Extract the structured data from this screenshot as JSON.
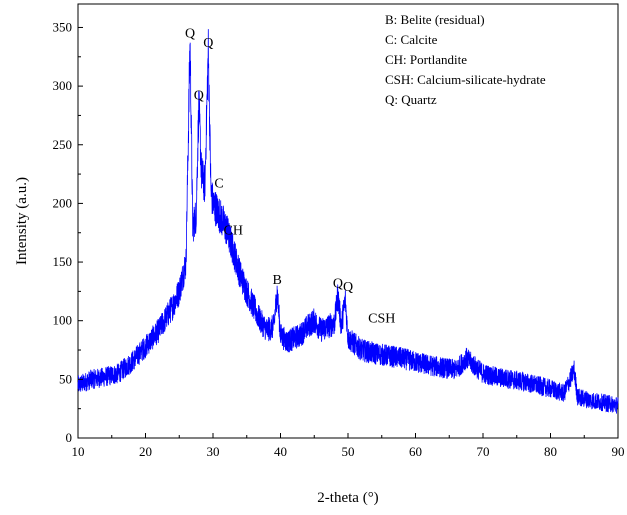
{
  "chart_data": {
    "type": "line",
    "xlabel": "2-theta (°)",
    "ylabel": "Intensity (a.u.)",
    "xlim": [
      10,
      90
    ],
    "ylim": [
      0,
      370
    ],
    "x_ticks": [
      10,
      20,
      30,
      40,
      50,
      60,
      70,
      80,
      90
    ],
    "y_ticks": [
      0,
      50,
      100,
      150,
      200,
      250,
      300,
      350
    ],
    "grid": false,
    "line_color": "#0000ff",
    "series": [
      {
        "x": [
          10,
          12,
          14,
          16,
          18,
          20,
          22,
          24,
          25,
          26,
          26.6,
          27,
          27.5,
          27.9,
          28.3,
          28.8,
          29.3,
          29.7,
          30,
          30.5,
          31,
          32,
          33,
          34,
          35,
          36,
          37,
          38,
          39,
          39.5,
          40,
          41,
          42,
          43,
          44,
          45,
          46,
          47,
          48,
          48.5,
          49,
          49.6,
          50,
          51,
          52,
          54,
          56,
          58,
          60,
          62,
          64,
          66,
          67.5,
          70,
          72,
          74,
          76,
          78,
          80,
          82,
          83.5,
          84,
          86,
          88,
          90
        ],
        "y": [
          45,
          50,
          52,
          55,
          65,
          78,
          92,
          112,
          125,
          150,
          338,
          180,
          190,
          285,
          225,
          215,
          330,
          210,
          200,
          195,
          190,
          178,
          160,
          140,
          125,
          112,
          100,
          92,
          95,
          125,
          88,
          82,
          85,
          88,
          95,
          100,
          92,
          95,
          98,
          122,
          95,
          118,
          85,
          80,
          75,
          72,
          70,
          68,
          65,
          62,
          60,
          58,
          68,
          55,
          52,
          50,
          48,
          45,
          42,
          38,
          58,
          35,
          32,
          30,
          28
        ]
      }
    ],
    "peak_labels": [
      {
        "text": "Q",
        "x": 26.6,
        "y": 338
      },
      {
        "text": "Q",
        "x": 29.3,
        "y": 330
      },
      {
        "text": "Q",
        "x": 27.9,
        "y": 285
      },
      {
        "text": "C",
        "x": 30.9,
        "y": 210
      },
      {
        "text": "CH",
        "x": 33.0,
        "y": 170
      },
      {
        "text": "B",
        "x": 39.5,
        "y": 128
      },
      {
        "text": "Q",
        "x": 48.5,
        "y": 125
      },
      {
        "text": "Q",
        "x": 50.0,
        "y": 122
      },
      {
        "text": "CSH",
        "x": 55.0,
        "y": 95
      }
    ],
    "legend_placement": "top-right",
    "legend": [
      "B: Belite (residual)",
      "C: Calcite",
      "CH: Portlandite",
      "CSH: Calcium-silicate-hydrate",
      "Q: Quartz"
    ]
  }
}
